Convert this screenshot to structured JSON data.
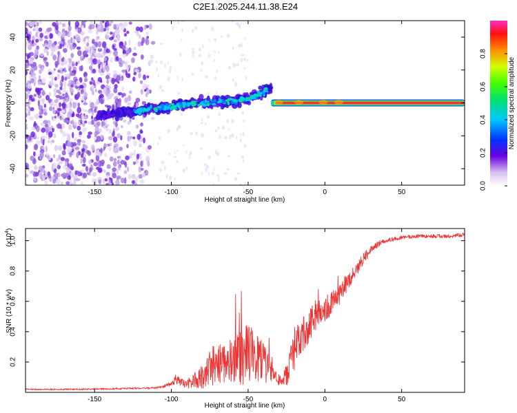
{
  "title": "C2E1.2025.244.11.38.E24",
  "chart_data": [
    {
      "type": "heatmap",
      "xlabel": "Height of straight line (km)",
      "ylabel": "Frequency (Hz)",
      "xlim": [
        -195,
        91
      ],
      "ylim": [
        -50,
        50
      ],
      "xticks": [
        -150,
        -100,
        -50,
        0,
        50
      ],
      "yticks": [
        -40,
        -20,
        0,
        20,
        40
      ],
      "xtick_labels": [
        "-150",
        "-100",
        "-50",
        "0",
        "50"
      ],
      "ytick_labels": [
        "-40",
        "-20",
        "0",
        "20",
        "40"
      ],
      "colorbar": {
        "label": "Normalized spectral amplitude",
        "range": [
          0,
          1
        ],
        "ticks": [
          0.0,
          0.2,
          0.4,
          0.6,
          0.8
        ],
        "tick_labels": [
          "0.0",
          "0.2",
          "0.4",
          "0.6",
          "0.8"
        ]
      },
      "features": [
        {
          "name": "scattered noise",
          "x_range": [
            -195,
            -110
          ],
          "y_range": [
            -50,
            50
          ],
          "amplitude": 0.1
        },
        {
          "name": "rising echo trace",
          "x": [
            -148,
            -120,
            -100,
            -80,
            -60,
            -45,
            -35
          ],
          "y": [
            -7,
            -5,
            -2,
            0,
            1,
            4,
            9
          ],
          "amplitude": 0.35
        },
        {
          "name": "strong horizontal line",
          "x_range": [
            -35,
            91
          ],
          "y": 0,
          "amplitude": 0.95
        }
      ]
    },
    {
      "type": "line",
      "xlabel": "Height of straight line (km)",
      "ylabel": "SNR (10 * v/v)",
      "scale_label": "(x10",
      "scale_exponent": "4",
      "xlim": [
        -195,
        91
      ],
      "ylim": [
        0,
        1.08
      ],
      "xticks": [
        -150,
        -100,
        -50,
        0,
        50
      ],
      "xtick_labels": [
        "-150",
        "-100",
        "-50",
        "0",
        "50"
      ],
      "yticks": [
        0.2,
        0.4,
        0.6,
        0.8,
        1.0
      ],
      "ytick_labels": [
        "0.2",
        "0.4",
        "0.6",
        "0.8",
        "1.0"
      ],
      "series": [
        {
          "name": "SNR",
          "color": "#ee3333",
          "x": [
            -195,
            -160,
            -130,
            -110,
            -105,
            -100,
            -97,
            -95,
            -90,
            -85,
            -80,
            -75,
            -70,
            -65,
            -60,
            -55,
            -50,
            -45,
            -40,
            -35,
            -30,
            -28,
            -25,
            -20,
            -15,
            -10,
            -5,
            0,
            5,
            10,
            15,
            20,
            25,
            30,
            35,
            40,
            50,
            60,
            70,
            80,
            91
          ],
          "y": [
            0.02,
            0.02,
            0.025,
            0.03,
            0.04,
            0.06,
            0.09,
            0.07,
            0.05,
            0.08,
            0.1,
            0.16,
            0.2,
            0.22,
            0.2,
            0.23,
            0.25,
            0.24,
            0.18,
            0.15,
            0.08,
            0.06,
            0.12,
            0.28,
            0.36,
            0.45,
            0.52,
            0.55,
            0.6,
            0.66,
            0.72,
            0.8,
            0.88,
            0.94,
            0.98,
            1.0,
            1.02,
            1.03,
            1.03,
            1.03,
            1.04
          ],
          "noise": [
            0.004,
            0.004,
            0.005,
            0.006,
            0.01,
            0.02,
            0.04,
            0.03,
            0.03,
            0.05,
            0.08,
            0.12,
            0.16,
            0.16,
            0.15,
            0.18,
            0.2,
            0.18,
            0.14,
            0.08,
            0.04,
            0.03,
            0.08,
            0.15,
            0.12,
            0.12,
            0.1,
            0.09,
            0.08,
            0.08,
            0.06,
            0.05,
            0.04,
            0.03,
            0.02,
            0.015,
            0.012,
            0.012,
            0.012,
            0.012,
            0.012
          ]
        }
      ]
    }
  ]
}
